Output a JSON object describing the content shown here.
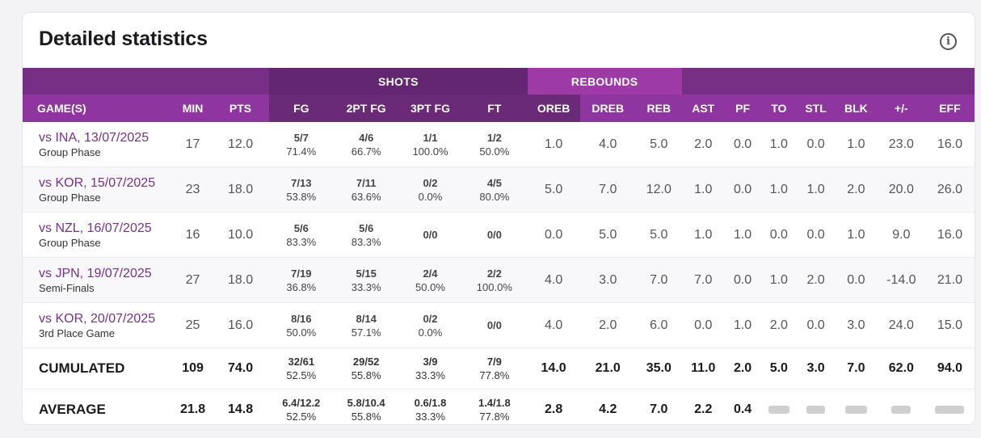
{
  "title": "Detailed statistics",
  "group_headers": {
    "shots": "SHOTS",
    "rebounds": "REBOUNDS"
  },
  "columns": [
    "GAME(S)",
    "MIN",
    "PTS",
    "FG",
    "2PT FG",
    "3PT FG",
    "FT",
    "OREB",
    "DREB",
    "REB",
    "AST",
    "PF",
    "TO",
    "STL",
    "BLK",
    "+/-",
    "EFF"
  ],
  "rows": [
    {
      "opp": "vs INA, 13/07/2025",
      "phase": "Group Phase",
      "min": "17",
      "pts": "12.0",
      "fg": [
        "5/7",
        "71.4%"
      ],
      "fg2": [
        "4/6",
        "66.7%"
      ],
      "fg3": [
        "1/1",
        "100.0%"
      ],
      "ft": [
        "1/2",
        "50.0%"
      ],
      "oreb": "1.0",
      "dreb": "4.0",
      "reb": "5.0",
      "ast": "2.0",
      "pf": "0.0",
      "to": "1.0",
      "stl": "0.0",
      "blk": "1.0",
      "pm": "23.0",
      "eff": "16.0"
    },
    {
      "opp": "vs KOR, 15/07/2025",
      "phase": "Group Phase",
      "min": "23",
      "pts": "18.0",
      "fg": [
        "7/13",
        "53.8%"
      ],
      "fg2": [
        "7/11",
        "63.6%"
      ],
      "fg3": [
        "0/2",
        "0.0%"
      ],
      "ft": [
        "4/5",
        "80.0%"
      ],
      "oreb": "5.0",
      "dreb": "7.0",
      "reb": "12.0",
      "ast": "1.0",
      "pf": "0.0",
      "to": "1.0",
      "stl": "1.0",
      "blk": "2.0",
      "pm": "20.0",
      "eff": "26.0"
    },
    {
      "opp": "vs NZL, 16/07/2025",
      "phase": "Group Phase",
      "min": "16",
      "pts": "10.0",
      "fg": [
        "5/6",
        "83.3%"
      ],
      "fg2": [
        "5/6",
        "83.3%"
      ],
      "fg3": [
        "0/0",
        ""
      ],
      "ft": [
        "0/0",
        ""
      ],
      "oreb": "0.0",
      "dreb": "5.0",
      "reb": "5.0",
      "ast": "1.0",
      "pf": "1.0",
      "to": "0.0",
      "stl": "0.0",
      "blk": "1.0",
      "pm": "9.0",
      "eff": "16.0"
    },
    {
      "opp": "vs JPN, 19/07/2025",
      "phase": "Semi-Finals",
      "min": "27",
      "pts": "18.0",
      "fg": [
        "7/19",
        "36.8%"
      ],
      "fg2": [
        "5/15",
        "33.3%"
      ],
      "fg3": [
        "2/4",
        "50.0%"
      ],
      "ft": [
        "2/2",
        "100.0%"
      ],
      "oreb": "4.0",
      "dreb": "3.0",
      "reb": "7.0",
      "ast": "7.0",
      "pf": "0.0",
      "to": "1.0",
      "stl": "2.0",
      "blk": "0.0",
      "pm": "-14.0",
      "eff": "21.0"
    },
    {
      "opp": "vs KOR, 20/07/2025",
      "phase": "3rd Place Game",
      "min": "25",
      "pts": "16.0",
      "fg": [
        "8/16",
        "50.0%"
      ],
      "fg2": [
        "8/14",
        "57.1%"
      ],
      "fg3": [
        "0/2",
        "0.0%"
      ],
      "ft": [
        "0/0",
        ""
      ],
      "oreb": "4.0",
      "dreb": "2.0",
      "reb": "6.0",
      "ast": "0.0",
      "pf": "1.0",
      "to": "2.0",
      "stl": "0.0",
      "blk": "3.0",
      "pm": "24.0",
      "eff": "15.0"
    }
  ],
  "cumulated": {
    "label": "CUMULATED",
    "min": "109",
    "pts": "74.0",
    "fg": [
      "32/61",
      "52.5%"
    ],
    "fg2": [
      "29/52",
      "55.8%"
    ],
    "fg3": [
      "3/9",
      "33.3%"
    ],
    "ft": [
      "7/9",
      "77.8%"
    ],
    "oreb": "14.0",
    "dreb": "21.0",
    "reb": "35.0",
    "ast": "11.0",
    "pf": "2.0",
    "to": "5.0",
    "stl": "3.0",
    "blk": "7.0",
    "pm": "62.0",
    "eff": "94.0"
  },
  "average": {
    "label": "AVERAGE",
    "min": "21.8",
    "pts": "14.8",
    "fg": [
      "6.4/12.2",
      "52.5%"
    ],
    "fg2": [
      "5.8/10.4",
      "55.8%"
    ],
    "fg3": [
      "0.6/1.8",
      "33.3%"
    ],
    "ft": [
      "1.4/1.8",
      "77.8%"
    ],
    "oreb": "2.8",
    "dreb": "4.2",
    "reb": "7.0",
    "ast": "2.2",
    "pf": "0.4"
  }
}
